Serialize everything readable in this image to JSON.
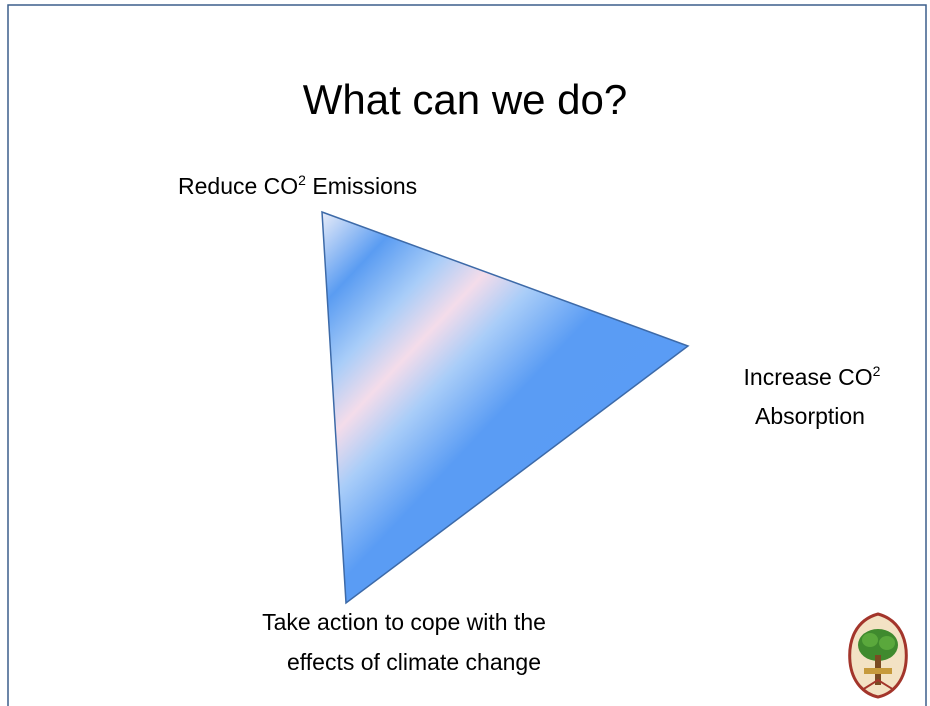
{
  "slide": {
    "title": "What can we do?",
    "top_label": {
      "text": "Reduce CO",
      "sup": "2",
      "rest": " Emissions"
    },
    "right_label": {
      "text": "Increase CO",
      "sup": "2",
      "line2": "Absorption"
    },
    "bottom_label": {
      "line1": "Take action to cope with the",
      "line2": "effects of climate change"
    }
  }
}
